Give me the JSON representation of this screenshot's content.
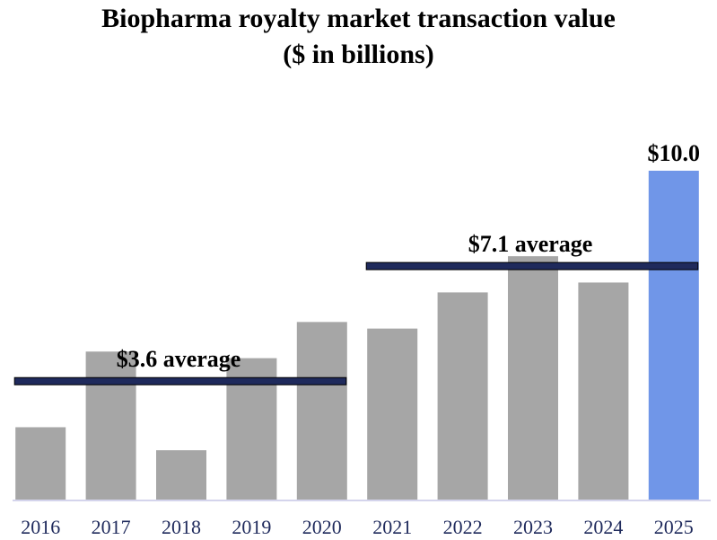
{
  "chart_data": {
    "type": "bar",
    "title": "Biopharma royalty market transaction value",
    "subtitle": "($ in billions)",
    "xlabel": "",
    "ylabel": "",
    "categories": [
      "2016",
      "2017",
      "2018",
      "2019",
      "2020",
      "2021",
      "2022",
      "2023",
      "2024",
      "2025"
    ],
    "values": [
      2.2,
      4.5,
      1.5,
      4.3,
      5.4,
      5.2,
      6.3,
      7.4,
      6.6,
      10.0
    ],
    "ylim": [
      0,
      11.5
    ],
    "grid": false,
    "legend": "none",
    "highlight": {
      "category": "2025",
      "label": "$10.0"
    },
    "averages": [
      {
        "label": "$3.6 average",
        "value": 3.6,
        "from": "2016",
        "to": "2020"
      },
      {
        "label": "$7.1 average",
        "value": 7.1,
        "from": "2021",
        "to": "2025"
      }
    ],
    "colors": {
      "bar": "#a6a6a6",
      "highlight": "#7096e8",
      "average_line": "#1f2a5c",
      "tick_label": "#1f2a5c",
      "axis": "#d4d4ec"
    }
  }
}
